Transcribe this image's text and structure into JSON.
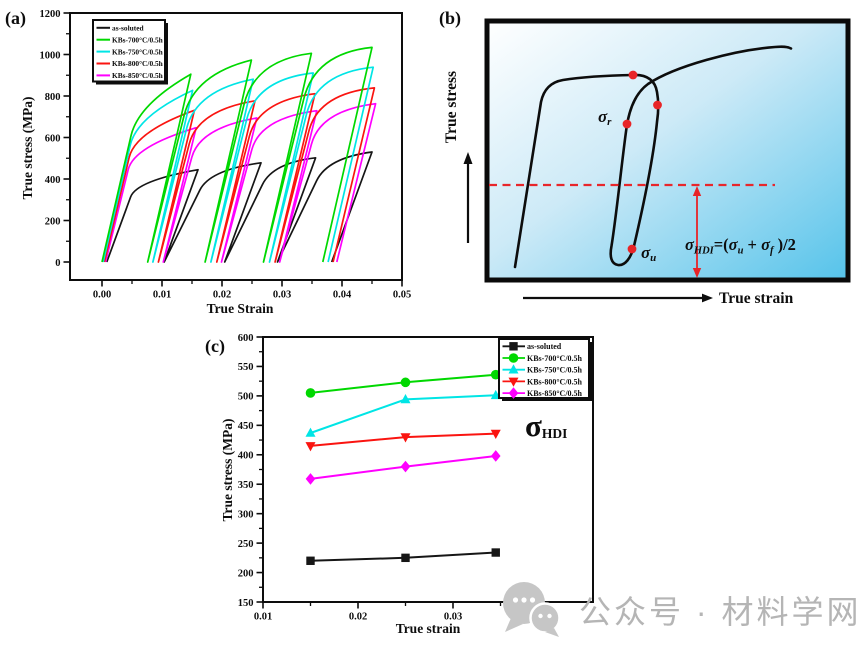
{
  "panel_labels": {
    "a": "(a)",
    "b": "(b)",
    "c": "(c)"
  },
  "watermark": {
    "text": "公众号 · 材料学网",
    "icon": "wechat-icon"
  },
  "chart_data": [
    {
      "id": "a",
      "type": "line",
      "description": "Cyclic loading-unloading-reloading true stress-strain curves",
      "xlabel": "True Strain",
      "ylabel": "True stress (MPa)",
      "xlim": [
        -0.0053,
        0.0553
      ],
      "ylim": [
        -87,
        1200
      ],
      "x_ticks": [
        "0.00",
        "0.01",
        "0.02",
        "0.03",
        "0.04",
        "0.05"
      ],
      "y_ticks": [
        "0",
        "200",
        "400",
        "600",
        "800",
        "1000",
        "1200"
      ],
      "legend_position": "top-left",
      "grid": false,
      "draw_order": [
        0,
        4,
        3,
        2,
        1
      ],
      "series": [
        {
          "name": "as-soluted",
          "color": "#161616",
          "curve_model": "loading-unloading-cycles",
          "start_strain": 0.0008,
          "elastic_modulus_MPa": 79000,
          "loop_width_strain": 0.002,
          "knee_frac": 0.88,
          "unload_points_strain_stress": [
            [
              0.016,
              445
            ],
            [
              0.0265,
              478
            ],
            [
              0.0356,
              502
            ],
            [
              0.045,
              530
            ]
          ]
        },
        {
          "name": "KBs-700°C/0.5h",
          "color": "#00d800",
          "curve_model": "loading-unloading-cycles",
          "start_strain": 0.0,
          "elastic_modulus_MPa": 126000,
          "loop_width_strain": 0.0006,
          "knee_frac": 0.84,
          "unload_points_strain_stress": [
            [
              0.0148,
              905
            ],
            [
              0.0249,
              973
            ],
            [
              0.0349,
              1006
            ],
            [
              0.045,
              1034
            ]
          ]
        },
        {
          "name": "KBs-750°C/0.5h",
          "color": "#00e5e5",
          "curve_model": "loading-unloading-cycles",
          "start_strain": 0.0002,
          "elastic_modulus_MPa": 125000,
          "loop_width_strain": 0.0006,
          "knee_frac": 0.85,
          "unload_points_strain_stress": [
            [
              0.0151,
              827
            ],
            [
              0.0252,
              881
            ],
            [
              0.0352,
              911
            ],
            [
              0.0452,
              939
            ]
          ]
        },
        {
          "name": "KBs-800°C/0.5h",
          "color": "#fa1410",
          "curve_model": "loading-unloading-cycles",
          "start_strain": 0.0004,
          "elastic_modulus_MPa": 122000,
          "loop_width_strain": 0.0006,
          "knee_frac": 0.86,
          "unload_points_strain_stress": [
            [
              0.0154,
              731
            ],
            [
              0.0255,
              777
            ],
            [
              0.0355,
              811
            ],
            [
              0.0454,
              839
            ]
          ]
        },
        {
          "name": "KBs-850°C/0.5h",
          "color": "#ff00ff",
          "curve_model": "loading-unloading-cycles",
          "start_strain": 0.0006,
          "elastic_modulus_MPa": 118000,
          "loop_width_strain": 0.0006,
          "knee_frac": 0.86,
          "unload_points_strain_stress": [
            [
              0.0157,
              647
            ],
            [
              0.0258,
              694
            ],
            [
              0.0358,
              729
            ],
            [
              0.0456,
              763
            ]
          ]
        }
      ]
    },
    {
      "id": "b",
      "type": "schematic",
      "description": "Schematic of one unloading-reloading hysteresis loop defining HDI stress",
      "xlabel": "True strain",
      "ylabel": "True stress",
      "labels": {
        "sigma_r_base": "σ",
        "sigma_r_sub": "r",
        "sigma_u_base": "σ",
        "sigma_u_sub": "u",
        "formula_lhs": "σ",
        "formula_lhs_sub": "HDI",
        "formula_eq": "=(",
        "formula_s1": "σ",
        "formula_s1_sub": "u",
        "formula_plus": " + ",
        "formula_s2": "σ",
        "formula_s2_sub": "f",
        "formula_tail": " )/2"
      },
      "annotations": {
        "dashed_line_color": "#e8262b",
        "marker_color": "#e82427",
        "curve_color": "#0d0d0d",
        "red_points": 4
      }
    },
    {
      "id": "c",
      "type": "scatter-line",
      "description": "HDI stress versus applied true strain",
      "xlabel": "True strain",
      "ylabel": "True stress (MPa)",
      "xlim": [
        0.01,
        0.0447
      ],
      "ylim": [
        150,
        600
      ],
      "x_ticks": [
        "0.01",
        "0.02",
        "0.03",
        "0.04"
      ],
      "y_ticks": [
        "150",
        "200",
        "250",
        "300",
        "350",
        "400",
        "450",
        "500",
        "550",
        "600"
      ],
      "x": [
        0.015,
        0.025,
        0.0345
      ],
      "sigma_label": {
        "base": "σ",
        "sub": "HDI"
      },
      "legend_position": "top-right",
      "grid": false,
      "draw_order": [
        0,
        4,
        3,
        2,
        1
      ],
      "series": [
        {
          "name": "as-soluted",
          "color": "#161616",
          "marker": "square",
          "values": [
            220,
            225,
            234
          ]
        },
        {
          "name": "KBs-700°C/0.5h",
          "color": "#00d800",
          "marker": "circle",
          "values": [
            505,
            523,
            536
          ]
        },
        {
          "name": "KBs-750°C/0.5h",
          "color": "#00e5e5",
          "marker": "triangle-up",
          "values": [
            437,
            494,
            501
          ]
        },
        {
          "name": "KBs-800°C/0.5h",
          "color": "#fa1410",
          "marker": "triangle-down",
          "values": [
            415,
            430,
            436
          ]
        },
        {
          "name": "KBs-850°C/0.5h",
          "color": "#ff00ff",
          "marker": "diamond",
          "values": [
            359,
            380,
            398
          ]
        }
      ]
    }
  ]
}
